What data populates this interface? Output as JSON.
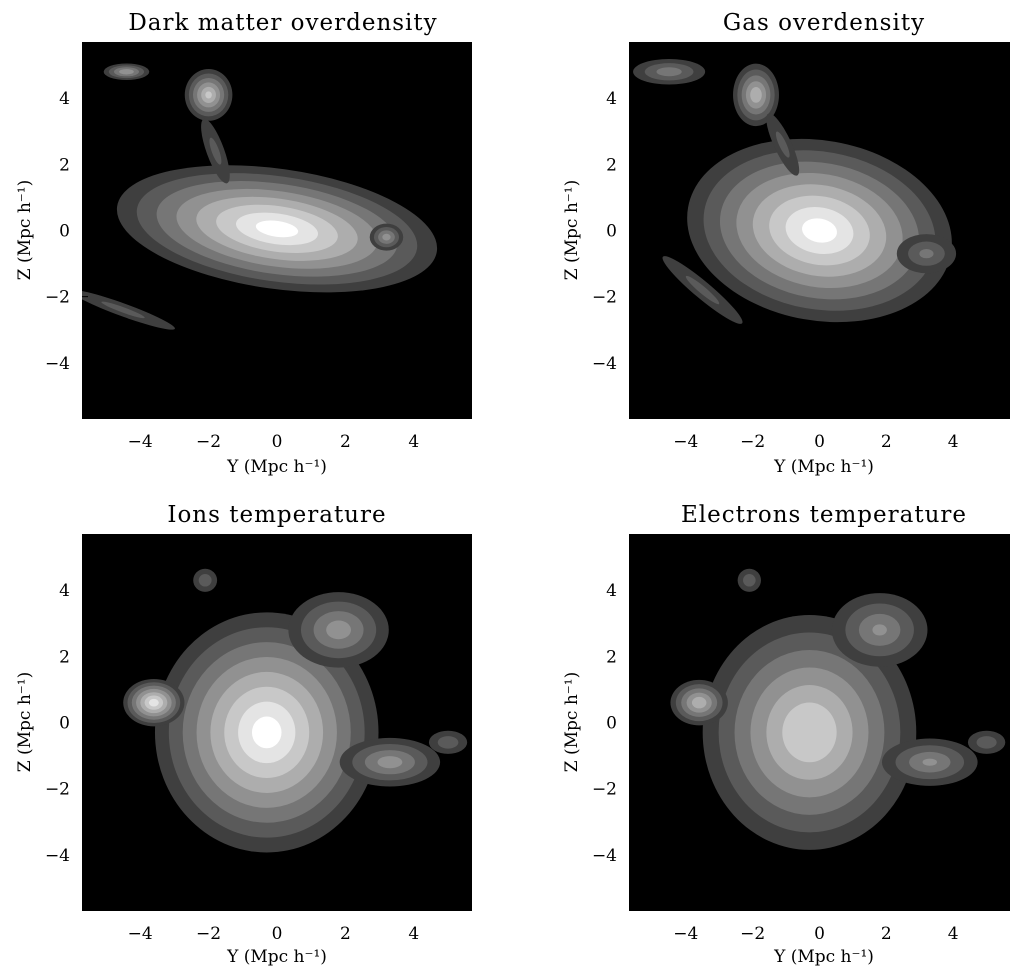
{
  "chart_data": [
    {
      "type": "heatmap",
      "title": "Dark matter overdensity",
      "xlabel": "Y (Mpc h⁻¹)",
      "ylabel": "Z (Mpc h⁻¹)",
      "xlim": [
        -5.7,
        5.7
      ],
      "ylim": [
        -5.7,
        5.7
      ],
      "xticks": [
        "-4",
        "-2",
        "0",
        "2",
        "4"
      ],
      "yticks": [
        "4",
        "2",
        "0",
        "-2",
        "-4"
      ],
      "blobs": [
        {
          "x": 0.0,
          "y": 0.05,
          "rx": 5.2,
          "ry": 2.0,
          "rot": -8,
          "peak": 1.0
        },
        {
          "x": -2.0,
          "y": 4.1,
          "rx": 0.8,
          "ry": 0.9,
          "rot": 0,
          "peak": 0.75
        },
        {
          "x": -4.4,
          "y": 4.8,
          "rx": 0.8,
          "ry": 0.3,
          "rot": 0,
          "peak": 0.6
        },
        {
          "x": 3.2,
          "y": -0.2,
          "rx": 0.6,
          "ry": 0.5,
          "rot": 0,
          "peak": 0.55
        },
        {
          "x": -4.5,
          "y": -2.4,
          "rx": 2.5,
          "ry": 0.3,
          "rot": -20,
          "peak": 0.3
        },
        {
          "x": -1.8,
          "y": 2.4,
          "rx": 0.4,
          "ry": 1.6,
          "rot": 20,
          "peak": 0.3
        }
      ]
    },
    {
      "type": "heatmap",
      "title": "Gas overdensity",
      "xlabel": "Y (Mpc h⁻¹)",
      "ylabel": "Z (Mpc h⁻¹)",
      "xlim": [
        -5.7,
        5.7
      ],
      "ylim": [
        -5.7,
        5.7
      ],
      "xticks": [
        "-4",
        "-2",
        "0",
        "2",
        "4"
      ],
      "yticks": [
        "4",
        "2",
        "0",
        "-2",
        "-4"
      ],
      "blobs": [
        {
          "x": 0.0,
          "y": 0.0,
          "rx": 4.4,
          "ry": 3.0,
          "rot": -10,
          "peak": 1.0
        },
        {
          "x": -1.9,
          "y": 4.1,
          "rx": 0.8,
          "ry": 1.1,
          "rot": 0,
          "peak": 0.7
        },
        {
          "x": -4.5,
          "y": 4.8,
          "rx": 1.4,
          "ry": 0.5,
          "rot": 0,
          "peak": 0.45
        },
        {
          "x": 3.2,
          "y": -0.7,
          "rx": 1.2,
          "ry": 0.8,
          "rot": 0,
          "peak": 0.4
        },
        {
          "x": -3.5,
          "y": -1.8,
          "rx": 2.4,
          "ry": 0.4,
          "rot": -40,
          "peak": 0.3
        },
        {
          "x": -1.1,
          "y": 2.6,
          "rx": 0.4,
          "ry": 1.6,
          "rot": 25,
          "peak": 0.3
        }
      ]
    },
    {
      "type": "heatmap",
      "title": "Ions temperature",
      "xlabel": "Y (Mpc h⁻¹)",
      "ylabel": "Z (Mpc h⁻¹)",
      "xlim": [
        -5.7,
        5.7
      ],
      "ylim": [
        -5.7,
        5.7
      ],
      "xticks": [
        "-4",
        "-2",
        "0",
        "2",
        "4"
      ],
      "yticks": [
        "4",
        "2",
        "0",
        "-2",
        "-4"
      ],
      "blobs": [
        {
          "x": -0.3,
          "y": -0.3,
          "rx": 3.6,
          "ry": 4.0,
          "rot": 0,
          "peak": 1.0
        },
        {
          "x": 1.8,
          "y": 2.8,
          "rx": 1.8,
          "ry": 1.4,
          "rot": 0,
          "peak": 0.55
        },
        {
          "x": 3.3,
          "y": -1.2,
          "rx": 1.8,
          "ry": 0.9,
          "rot": 0,
          "peak": 0.55
        },
        {
          "x": -3.6,
          "y": 0.6,
          "rx": 1.0,
          "ry": 0.8,
          "rot": 0,
          "peak": 0.9
        },
        {
          "x": -2.1,
          "y": 4.3,
          "rx": 0.5,
          "ry": 0.5,
          "rot": 0,
          "peak": 0.35
        },
        {
          "x": 5.0,
          "y": -0.6,
          "rx": 0.8,
          "ry": 0.5,
          "rot": 0,
          "peak": 0.35
        }
      ]
    },
    {
      "type": "heatmap",
      "title": "Electrons temperature",
      "xlabel": "Y (Mpc h⁻¹)",
      "ylabel": "Z (Mpc h⁻¹)",
      "xlim": [
        -5.7,
        5.7
      ],
      "ylim": [
        -5.7,
        5.7
      ],
      "xticks": [
        "-4",
        "-2",
        "0",
        "2",
        "4"
      ],
      "yticks": [
        "4",
        "2",
        "0",
        "-2",
        "-4"
      ],
      "blobs": [
        {
          "x": -0.3,
          "y": -0.3,
          "rx": 3.6,
          "ry": 4.0,
          "rot": 0,
          "peak": 0.85
        },
        {
          "x": 1.8,
          "y": 2.8,
          "rx": 1.8,
          "ry": 1.4,
          "rot": 0,
          "peak": 0.5
        },
        {
          "x": 3.3,
          "y": -1.2,
          "rx": 1.8,
          "ry": 0.9,
          "rot": 0,
          "peak": 0.5
        },
        {
          "x": -3.6,
          "y": 0.6,
          "rx": 1.0,
          "ry": 0.8,
          "rot": 0,
          "peak": 0.7
        },
        {
          "x": -2.1,
          "y": 4.3,
          "rx": 0.5,
          "ry": 0.5,
          "rot": 0,
          "peak": 0.35
        },
        {
          "x": 5.0,
          "y": -0.6,
          "rx": 0.8,
          "ry": 0.5,
          "rot": 0,
          "peak": 0.35
        }
      ]
    }
  ]
}
